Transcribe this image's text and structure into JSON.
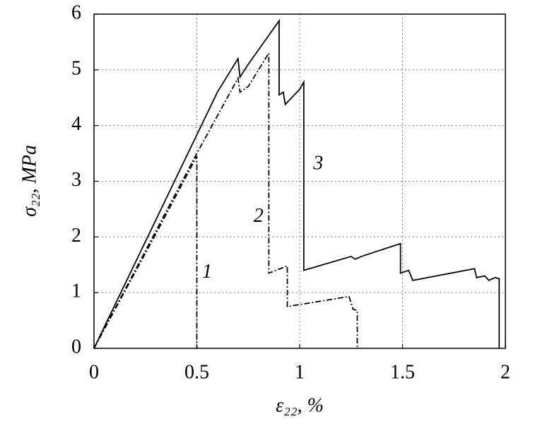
{
  "chart_data": {
    "type": "line",
    "x_label": "ε₂₂, %",
    "y_label": "σ₂₂, MPa",
    "xlim": [
      0,
      2
    ],
    "ylim": [
      0,
      6
    ],
    "xticks": [
      0,
      0.5,
      1,
      1.5,
      2
    ],
    "yticks": [
      0,
      1,
      2,
      3,
      4,
      5,
      6
    ],
    "grid": true,
    "series": [
      {
        "name": "1",
        "color": "#000000",
        "linestyle": "dashdot",
        "x": [
          0,
          0.3,
          0.5,
          0.5
        ],
        "values": [
          0,
          2.05,
          3.45,
          0
        ]
      },
      {
        "name": "2",
        "color": "#000000",
        "linestyle": "dashdot",
        "x": [
          0,
          0.5,
          0.7,
          0.71,
          0.75,
          0.85,
          0.85,
          0.94,
          0.94,
          1.24,
          1.26,
          1.28,
          1.28
        ],
        "values": [
          0,
          3.5,
          4.85,
          4.6,
          4.7,
          5.3,
          1.35,
          1.48,
          0.75,
          0.93,
          0.7,
          0.68,
          0
        ]
      },
      {
        "name": "3",
        "color": "#000000",
        "linestyle": "solid",
        "x": [
          0,
          0.6,
          0.7,
          0.71,
          0.75,
          0.9,
          0.9,
          0.92,
          0.93,
          1.0,
          1.02,
          1.02,
          1.25,
          1.27,
          1.3,
          1.49,
          1.49,
          1.53,
          1.55,
          1.85,
          1.86,
          1.9,
          1.92,
          1.95,
          1.97,
          1.97
        ],
        "values": [
          0,
          4.6,
          5.2,
          4.87,
          5.1,
          5.88,
          4.55,
          4.6,
          4.38,
          4.65,
          4.78,
          1.4,
          1.65,
          1.6,
          1.65,
          1.88,
          1.35,
          1.4,
          1.22,
          1.43,
          1.27,
          1.3,
          1.22,
          1.27,
          1.25,
          0
        ]
      }
    ]
  }
}
